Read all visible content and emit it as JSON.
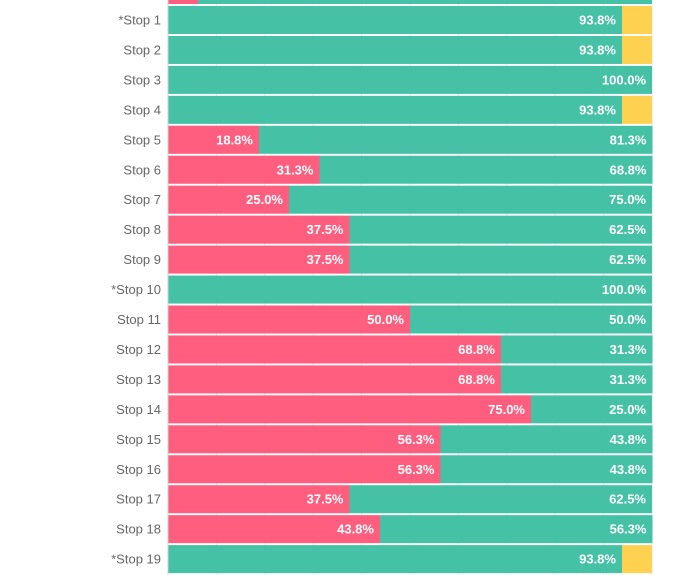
{
  "chart_data": {
    "type": "bar",
    "orientation": "horizontal",
    "stacked": true,
    "normalized_percent": true,
    "categories": [
      "*Stop 1",
      "Stop 2",
      "Stop 3",
      "Stop 4",
      "Stop 5",
      "Stop 6",
      "Stop 7",
      "Stop 8",
      "Stop 9",
      "*Stop 10",
      "Stop 11",
      "Stop 12",
      "Stop 13",
      "Stop 14",
      "Stop 15",
      "Stop 16",
      "Stop 17",
      "Stop 18",
      "*Stop 19"
    ],
    "series": [
      {
        "color": "#ff5e7e",
        "values": [
          0.0,
          0.0,
          0.0,
          0.0,
          18.8,
          31.3,
          25.0,
          37.5,
          37.5,
          0.0,
          50.0,
          68.8,
          68.8,
          75.0,
          56.3,
          56.3,
          37.5,
          43.8,
          0.0
        ],
        "labels": [
          "",
          "",
          "",
          "",
          "18.8%",
          "31.3%",
          "25.0%",
          "37.5%",
          "37.5%",
          "",
          "50.0%",
          "68.8%",
          "68.8%",
          "75.0%",
          "56.3%",
          "56.3%",
          "37.5%",
          "43.8%",
          ""
        ]
      },
      {
        "color": "#45c1a6",
        "values": [
          93.8,
          93.8,
          100.0,
          93.8,
          81.3,
          68.8,
          75.0,
          62.5,
          62.5,
          100.0,
          50.0,
          31.3,
          31.3,
          25.0,
          43.8,
          43.8,
          62.5,
          56.3,
          93.8
        ],
        "labels": [
          "93.8%",
          "93.8%",
          "100.0%",
          "93.8%",
          "81.3%",
          "68.8%",
          "75.0%",
          "62.5%",
          "62.5%",
          "100.0%",
          "50.0%",
          "31.3%",
          "31.3%",
          "25.0%",
          "43.8%",
          "43.8%",
          "62.5%",
          "56.3%",
          "93.8%"
        ]
      },
      {
        "color": "#ffd150",
        "values": [
          6.2,
          6.2,
          0.0,
          6.2,
          0,
          0,
          0,
          0,
          0,
          0,
          0,
          0,
          0,
          0,
          0,
          0,
          0,
          0,
          6.2
        ]
      }
    ],
    "partial_top_row": {
      "values": [
        6.2,
        93.8
      ]
    },
    "xlim": [
      0,
      100
    ],
    "grid": true,
    "legend": "none"
  }
}
